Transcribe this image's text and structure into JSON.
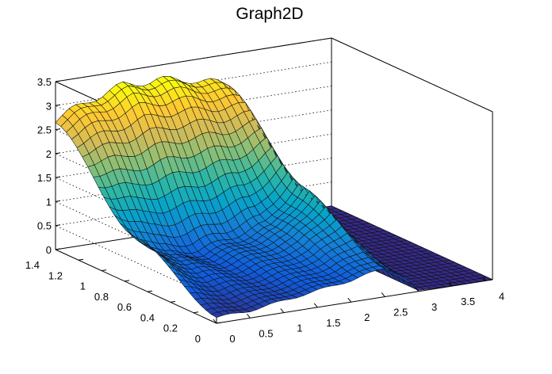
{
  "chart_data": {
    "type": "surface",
    "title": "Graph2D",
    "xlabel": "",
    "ylabel": "",
    "zlabel": "",
    "xlim": [
      0,
      4.1
    ],
    "ylim": [
      0,
      1.4
    ],
    "zlim": [
      0,
      3.5
    ],
    "x_ticks": [
      "0",
      "0.5",
      "1",
      "1.5",
      "2",
      "2.5",
      "3",
      "3.5",
      "4"
    ],
    "y_ticks": [
      "0",
      "0.2",
      "0.4",
      "0.6",
      "0.8",
      "1",
      "1.2",
      "1.4"
    ],
    "z_ticks": [
      "0",
      "0.5",
      "1",
      "1.5",
      "2",
      "2.5",
      "3",
      "3.5"
    ],
    "grid": true,
    "colormap": [
      "#352a87",
      "#0f5cdd",
      "#1481d6",
      "#06a4ca",
      "#2eb7a4",
      "#87bf77",
      "#d1bb59",
      "#fec832",
      "#f9fb0e"
    ],
    "surface_profile_x": [
      0,
      0.5,
      1,
      1.5,
      2,
      2.5,
      2.75,
      3,
      3.5,
      4.1
    ],
    "surface_profile_z_at_y_max": [
      2.7,
      3.0,
      3.2,
      3.2,
      3.1,
      2.9,
      2.2,
      0.02,
      0,
      0
    ],
    "surface_profile_z_at_y_mid": [
      1.0,
      0.5,
      0.45,
      0.6,
      0.8,
      1.5,
      0.8,
      0.02,
      0,
      0
    ],
    "surface_profile_z_at_y_min": [
      0.12,
      0.15,
      0.25,
      0.35,
      0.45,
      0.6,
      0.4,
      0.02,
      0,
      0
    ]
  }
}
